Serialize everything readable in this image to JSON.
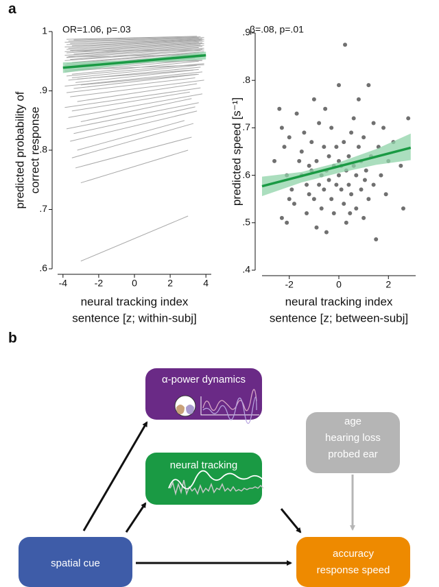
{
  "panel_labels": [
    "a",
    "b"
  ],
  "chart_data": [
    {
      "type": "line",
      "annotation": "OR=1.06, p=.03",
      "ylabel": [
        "predicted probability of",
        "correct response"
      ],
      "xlabel": [
        "neural tracking index",
        "sentence [z; within-subj]"
      ],
      "xlim": [
        -4.3,
        4.3
      ],
      "xticks": [
        -4,
        -2,
        0,
        2,
        4
      ],
      "ylim": [
        0.6,
        1
      ],
      "yticks": [
        {
          "value": 0.6,
          "label": ".6"
        },
        {
          "value": 0.7,
          "label": ".7"
        },
        {
          "value": 0.8,
          "label": ".8"
        },
        {
          "value": 0.9,
          "label": ".9"
        },
        1
      ],
      "subject_color": "#a8a8a8",
      "subject_lines": [
        [
          -3,
          0.613,
          3,
          0.689
        ],
        [
          -3,
          0.745,
          3,
          0.8
        ],
        [
          -3.3,
          0.77,
          3.2,
          0.822
        ],
        [
          -3.5,
          0.787,
          3.3,
          0.845
        ],
        [
          -3.2,
          0.8,
          2.8,
          0.85
        ],
        [
          -3.6,
          0.815,
          3.5,
          0.866
        ],
        [
          -3.4,
          0.828,
          3.4,
          0.873
        ],
        [
          -3.8,
          0.836,
          3.6,
          0.88
        ],
        [
          -3,
          0.848,
          3.2,
          0.887
        ],
        [
          -3.7,
          0.855,
          3.8,
          0.895
        ],
        [
          -3.5,
          0.866,
          3.1,
          0.898
        ],
        [
          -3.9,
          0.872,
          3.7,
          0.905
        ],
        [
          -3.2,
          0.882,
          3.5,
          0.912
        ],
        [
          -3.6,
          0.89,
          3.9,
          0.918
        ],
        [
          -3.8,
          0.897,
          3.4,
          0.922
        ],
        [
          -3.4,
          0.904,
          3.6,
          0.928
        ],
        [
          -3.9,
          0.908,
          3.8,
          0.932
        ],
        [
          -3.3,
          0.914,
          3.3,
          0.935
        ],
        [
          -3.7,
          0.918,
          3.7,
          0.94
        ],
        [
          -3.5,
          0.922,
          3.5,
          0.943
        ],
        [
          -3.8,
          0.925,
          3.9,
          0.946
        ],
        [
          -3.5,
          0.928,
          3.6,
          0.95
        ],
        [
          -3.9,
          0.932,
          3.8,
          0.953
        ],
        [
          -3.6,
          0.935,
          3.4,
          0.955
        ],
        [
          -3.7,
          0.938,
          3.9,
          0.958
        ],
        [
          -3.4,
          0.94,
          3.7,
          0.96
        ],
        [
          -3.9,
          0.943,
          3.8,
          0.962
        ],
        [
          -3.8,
          0.946,
          3.6,
          0.964
        ],
        [
          -3.5,
          0.948,
          3.9,
          0.966
        ],
        [
          -3.9,
          0.951,
          3.7,
          0.968
        ],
        [
          -3.6,
          0.953,
          3.8,
          0.97
        ],
        [
          -3.8,
          0.956,
          3.9,
          0.972
        ],
        [
          -3.7,
          0.958,
          3.6,
          0.973
        ],
        [
          -3.9,
          0.96,
          3.8,
          0.975
        ],
        [
          -3.4,
          0.962,
          3.9,
          0.977
        ],
        [
          -3.8,
          0.964,
          3.7,
          0.978
        ],
        [
          -3.9,
          0.966,
          3.9,
          0.98
        ],
        [
          -3.6,
          0.968,
          3.8,
          0.981
        ],
        [
          -3.8,
          0.97,
          3.6,
          0.982
        ],
        [
          -3.7,
          0.972,
          3.9,
          0.984
        ],
        [
          -3.9,
          0.974,
          3.8,
          0.985
        ],
        [
          -3.5,
          0.976,
          3.7,
          0.986
        ],
        [
          -3.8,
          0.978,
          3.9,
          0.987
        ],
        [
          -3.6,
          0.98,
          3.8,
          0.988
        ],
        [
          -3.9,
          0.982,
          3.6,
          0.989
        ],
        [
          -3.7,
          0.984,
          3.9,
          0.99
        ],
        [
          -3.4,
          0.986,
          3.7,
          0.991
        ],
        [
          -3.8,
          0.987,
          3.5,
          0.992
        ],
        [
          -3.9,
          0.935,
          3.9,
          0.944
        ],
        [
          -3.6,
          0.944,
          3.8,
          0.951
        ],
        [
          -3.8,
          0.957,
          3.7,
          0.961
        ],
        [
          -3.5,
          0.967,
          3.9,
          0.969
        ],
        [
          -3.2,
          0.92,
          3.6,
          0.936
        ],
        [
          -3,
          0.91,
          3.5,
          0.928
        ]
      ],
      "fit": {
        "color": "#1a9a44",
        "band_color": "#8fd3a8",
        "x": [
          -4,
          4
        ],
        "values": [
          0.939,
          0.96
        ],
        "ci_x": [
          -4,
          0,
          4
        ],
        "ci_lower": [
          0.93,
          0.946,
          0.953
        ],
        "ci_upper": [
          0.948,
          0.952,
          0.966
        ]
      }
    },
    {
      "type": "scatter",
      "annotation": "β=.08, p=.01",
      "ylabel": [
        "predicted speed [s⁻¹]"
      ],
      "xlabel": [
        "neural tracking index",
        "sentence [z; between-subj]"
      ],
      "xlim": [
        -3.1,
        3.1
      ],
      "xticks": [
        -2,
        0,
        2
      ],
      "ylim": [
        0.4,
        0.9
      ],
      "yticks": [
        {
          "value": 0.4,
          "label": ".4"
        },
        {
          "value": 0.5,
          "label": ".5"
        },
        {
          "value": 0.6,
          "label": ".6"
        },
        {
          "value": 0.7,
          "label": ".7"
        },
        {
          "value": 0.8,
          "label": ".8"
        },
        {
          "value": 0.9,
          "label": ".9"
        }
      ],
      "color": "#707070",
      "x": [
        -2.6,
        -2.4,
        -2.3,
        -2.2,
        -2.1,
        -2.3,
        -2.1,
        -2,
        -1.9,
        -1.8,
        -1.7,
        -1.6,
        -1.5,
        -1.5,
        -1.4,
        -1.3,
        -1.3,
        -1.2,
        -1.1,
        -1.1,
        -1,
        -1,
        -0.9,
        -0.9,
        -0.8,
        -0.8,
        -0.7,
        -0.7,
        -0.6,
        -0.6,
        -0.5,
        -0.5,
        -0.4,
        -0.4,
        -0.3,
        -0.3,
        -0.2,
        -0.2,
        -0.1,
        -0.1,
        0,
        0,
        0,
        0.1,
        0.1,
        0.2,
        0.2,
        0.25,
        0.3,
        0.3,
        0.4,
        0.4,
        0.5,
        0.5,
        0.6,
        0.6,
        0.7,
        0.7,
        0.8,
        0.8,
        0.9,
        0.9,
        1,
        1,
        1.1,
        1.2,
        1.2,
        1.3,
        1.4,
        1.4,
        1.5,
        1.6,
        1.7,
        1.8,
        1.9,
        2,
        2.2,
        2.5,
        2.6,
        2.8,
        -2,
        -1.2,
        0.45,
        -0.55,
        1.05
      ],
      "values": [
        0.63,
        0.74,
        0.7,
        0.66,
        0.6,
        0.51,
        0.5,
        0.55,
        0.57,
        0.54,
        0.73,
        0.63,
        0.6,
        0.65,
        0.69,
        0.58,
        0.52,
        0.56,
        0.61,
        0.67,
        0.76,
        0.55,
        0.49,
        0.63,
        0.58,
        0.71,
        0.6,
        0.53,
        0.66,
        0.57,
        0.61,
        0.48,
        0.64,
        0.59,
        0.55,
        0.7,
        0.62,
        0.52,
        0.58,
        0.66,
        0.6,
        0.63,
        0.79,
        0.57,
        0.62,
        0.54,
        0.67,
        0.875,
        0.61,
        0.5,
        0.64,
        0.58,
        0.69,
        0.56,
        0.62,
        0.72,
        0.53,
        0.6,
        0.66,
        0.76,
        0.57,
        0.63,
        0.51,
        0.68,
        0.61,
        0.79,
        0.55,
        0.64,
        0.58,
        0.71,
        0.465,
        0.66,
        0.6,
        0.7,
        0.56,
        0.63,
        0.67,
        0.62,
        0.53,
        0.72,
        0.68,
        0.62,
        0.52,
        0.74,
        0.59
      ],
      "fit": {
        "color": "#1a9a44",
        "band_color": "#8fd3a8",
        "x": [
          -3.1,
          2.9
        ],
        "values": [
          0.577,
          0.658
        ],
        "ci_x": [
          -3.1,
          -1.5,
          0,
          1.5,
          2.9
        ],
        "ci_lower": [
          0.556,
          0.585,
          0.605,
          0.622,
          0.632
        ],
        "ci_upper": [
          0.597,
          0.607,
          0.627,
          0.655,
          0.688
        ]
      }
    }
  ],
  "diagram": {
    "nodes": [
      {
        "lines": [
          "α-power dynamics"
        ],
        "color": "#6a2a86",
        "text_color": "#ffffff"
      },
      {
        "lines": [
          "neural tracking"
        ],
        "color": "#1a9a44",
        "text_color": "#ffffff"
      },
      {
        "lines": [
          "age",
          "hearing loss",
          "probed ear"
        ],
        "color": "#b5b5b5",
        "text_color": "#ffffff"
      },
      {
        "lines": [
          "spatial cue"
        ],
        "color": "#3e5ca8",
        "text_color": "#ffffff"
      },
      {
        "lines": [
          "accuracy",
          "response speed"
        ],
        "color": "#ee8a00",
        "text_color": "#ffffff"
      }
    ]
  }
}
